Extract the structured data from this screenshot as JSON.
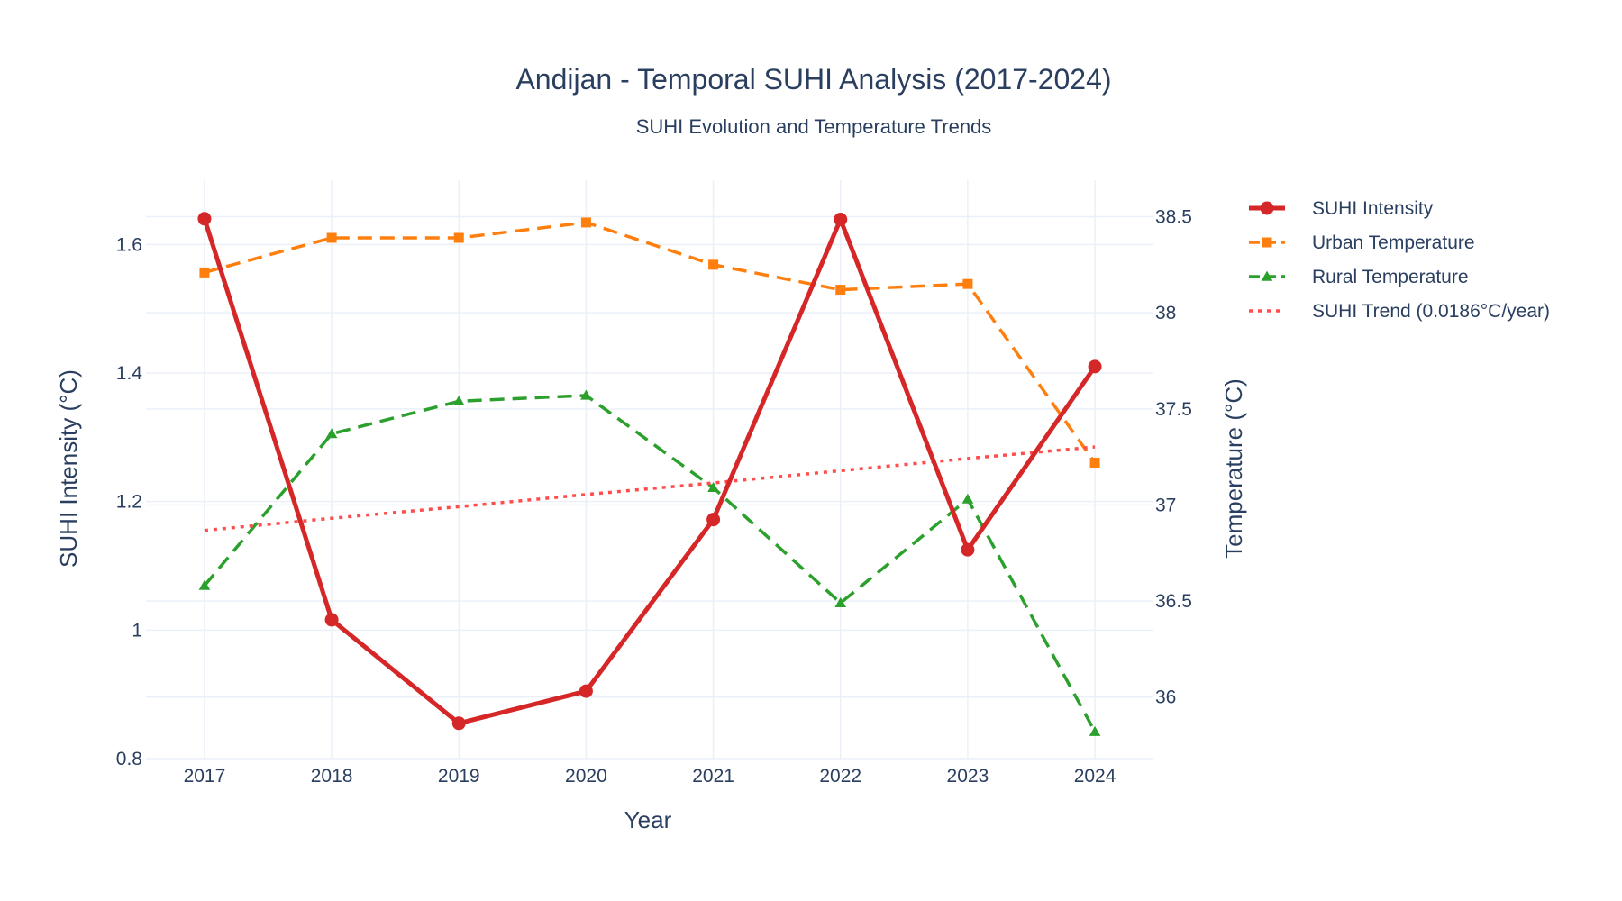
{
  "chart_data": {
    "type": "line",
    "title": "Andijan - Temporal SUHI Analysis (2017-2024)",
    "subtitle": "SUHI Evolution and Temperature Trends",
    "xlabel": "Year",
    "ylabel_left": "SUHI Intensity (°C)",
    "ylabel_right": "Temperature (°C)",
    "x": [
      2017,
      2018,
      2019,
      2020,
      2021,
      2022,
      2023,
      2024
    ],
    "x_ticks": [
      "2017",
      "2018",
      "2019",
      "2020",
      "2021",
      "2022",
      "2023",
      "2024"
    ],
    "y_left_range": [
      0.8,
      1.7
    ],
    "y_left_ticks": [
      0.8,
      1,
      1.2,
      1.4,
      1.6
    ],
    "y_left_tick_labels": [
      "0.8",
      "1",
      "1.2",
      "1.4",
      "1.6"
    ],
    "y_right_range": [
      35.68,
      38.69
    ],
    "y_right_ticks": [
      36,
      36.5,
      37,
      37.5,
      38,
      38.5
    ],
    "y_right_tick_labels": [
      "36",
      "36.5",
      "37",
      "37.5",
      "38",
      "38.5"
    ],
    "grid": true,
    "legend_position": "top-right",
    "series": [
      {
        "name": "SUHI Intensity",
        "axis": "left",
        "values": [
          1.64,
          1.016,
          0.855,
          0.905,
          1.172,
          1.639,
          1.125,
          1.41
        ],
        "color": "#d62728",
        "line": "solid",
        "marker": "circle"
      },
      {
        "name": "Urban Temperature",
        "axis": "right",
        "values": [
          38.21,
          38.39,
          38.39,
          38.47,
          38.25,
          38.12,
          38.15,
          37.22
        ],
        "color": "#ff7f0e",
        "line": "dash",
        "marker": "square"
      },
      {
        "name": "Rural Temperature",
        "axis": "right",
        "values": [
          36.58,
          37.37,
          37.54,
          37.57,
          37.09,
          36.49,
          37.03,
          35.82
        ],
        "color": "#2ca02c",
        "line": "dash",
        "marker": "triangle-up"
      },
      {
        "name": "SUHI Trend (0.0186°C/year)",
        "axis": "left",
        "values": [
          1.155,
          1.174,
          1.192,
          1.211,
          1.229,
          1.248,
          1.267,
          1.285
        ],
        "color": "#ff4d4d",
        "line": "dot",
        "marker": "none"
      }
    ]
  }
}
